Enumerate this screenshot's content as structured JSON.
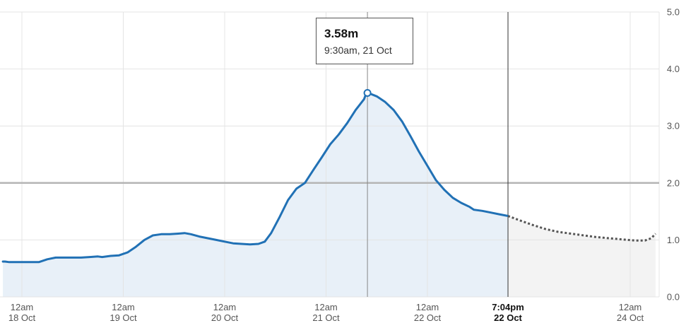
{
  "chart_data": {
    "type": "area",
    "title": "",
    "xlabel": "",
    "ylabel": "",
    "ylim": [
      0,
      5
    ],
    "y_ticks": [
      "0.0",
      "1.0",
      "2.0",
      "3.0",
      "4.0",
      "5.0"
    ],
    "y_axis_position": "right",
    "grid": true,
    "threshold": 2.0,
    "x_ticks": [
      {
        "hours": 0,
        "line1": "12am",
        "line2": "18 Oct",
        "bold": false
      },
      {
        "hours": 24,
        "line1": "12am",
        "line2": "19 Oct",
        "bold": false
      },
      {
        "hours": 48,
        "line1": "12am",
        "line2": "20 Oct",
        "bold": false
      },
      {
        "hours": 72,
        "line1": "12am",
        "line2": "21 Oct",
        "bold": false
      },
      {
        "hours": 96,
        "line1": "12am",
        "line2": "22 Oct",
        "bold": false
      },
      {
        "hours": 115.07,
        "line1": "7:04pm",
        "line2": "22 Oct",
        "bold": true
      },
      {
        "hours": 144,
        "line1": "12am",
        "line2": "24 Oct",
        "bold": false
      }
    ],
    "now_hours": 115.07,
    "series": [
      {
        "kind": "observed",
        "points": [
          [
            -4.5,
            0.62
          ],
          [
            -4,
            0.62
          ],
          [
            -3,
            0.61
          ],
          [
            0,
            0.61
          ],
          [
            2,
            0.61
          ],
          [
            4,
            0.61
          ],
          [
            6,
            0.66
          ],
          [
            8,
            0.69
          ],
          [
            10,
            0.69
          ],
          [
            12,
            0.69
          ],
          [
            14,
            0.69
          ],
          [
            16,
            0.7
          ],
          [
            18,
            0.71
          ],
          [
            19,
            0.7
          ],
          [
            21,
            0.72
          ],
          [
            23,
            0.73
          ],
          [
            25,
            0.78
          ],
          [
            27,
            0.88
          ],
          [
            29,
            1.0
          ],
          [
            31,
            1.08
          ],
          [
            33,
            1.1
          ],
          [
            35,
            1.1
          ],
          [
            37,
            1.11
          ],
          [
            38.5,
            1.12
          ],
          [
            40,
            1.1
          ],
          [
            42,
            1.06
          ],
          [
            44,
            1.03
          ],
          [
            46,
            1.0
          ],
          [
            48,
            0.97
          ],
          [
            50,
            0.94
          ],
          [
            52,
            0.93
          ],
          [
            54,
            0.92
          ],
          [
            56,
            0.93
          ],
          [
            57.5,
            0.97
          ],
          [
            59,
            1.12
          ],
          [
            61,
            1.4
          ],
          [
            63,
            1.7
          ],
          [
            65,
            1.9
          ],
          [
            67,
            2.0
          ],
          [
            69,
            2.23
          ],
          [
            71,
            2.45
          ],
          [
            73,
            2.68
          ],
          [
            75,
            2.85
          ],
          [
            77,
            3.05
          ],
          [
            79,
            3.28
          ],
          [
            81,
            3.47
          ],
          [
            81.5,
            3.57
          ],
          [
            82,
            3.58
          ],
          [
            84,
            3.52
          ],
          [
            86,
            3.42
          ],
          [
            88,
            3.28
          ],
          [
            90,
            3.08
          ],
          [
            92,
            2.82
          ],
          [
            94,
            2.55
          ],
          [
            96,
            2.3
          ],
          [
            98,
            2.05
          ],
          [
            100,
            1.88
          ],
          [
            102,
            1.74
          ],
          [
            104,
            1.65
          ],
          [
            106,
            1.58
          ],
          [
            107,
            1.53
          ],
          [
            109,
            1.51
          ],
          [
            111,
            1.48
          ],
          [
            113,
            1.45
          ],
          [
            115.07,
            1.42
          ]
        ]
      },
      {
        "kind": "forecast",
        "points": [
          [
            115.07,
            1.42
          ],
          [
            118,
            1.34
          ],
          [
            121,
            1.26
          ],
          [
            124,
            1.19
          ],
          [
            127,
            1.14
          ],
          [
            130,
            1.11
          ],
          [
            133,
            1.08
          ],
          [
            136,
            1.05
          ],
          [
            139,
            1.03
          ],
          [
            142,
            1.01
          ],
          [
            145,
            0.99
          ],
          [
            147.5,
            0.99
          ],
          [
            149,
            1.03
          ],
          [
            150,
            1.11
          ]
        ]
      }
    ],
    "peak": {
      "hours": 81.8,
      "value": 3.58
    }
  },
  "tooltip": {
    "value": "3.58m",
    "time": "9:30am, 21 Oct"
  }
}
